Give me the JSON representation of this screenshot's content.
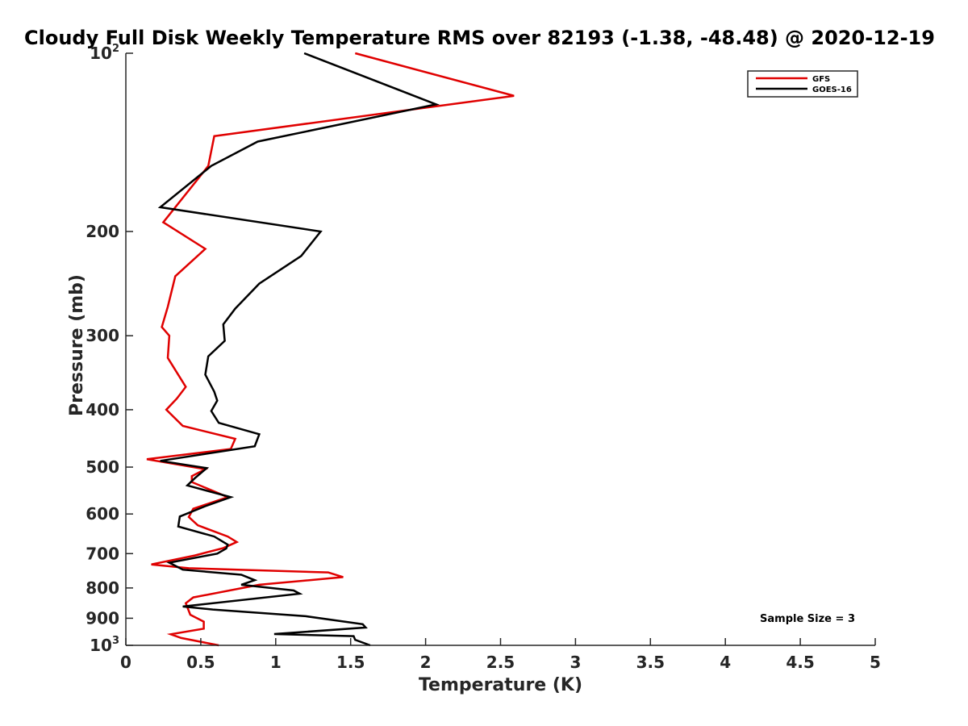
{
  "chart_data": {
    "type": "line",
    "title": "Cloudy Full Disk Weekly Temperature RMS over 82193 (-1.38, -48.48) @ 2020-12-19",
    "xlabel": "Temperature (K)",
    "ylabel": "Pressure (mb)",
    "xlim": [
      0,
      5
    ],
    "ylim": [
      100,
      1000
    ],
    "y_scale": "log",
    "y_reversed": true,
    "x_ticks": [
      "0",
      "0.5",
      "1",
      "1.5",
      "2",
      "2.5",
      "3",
      "3.5",
      "4",
      "4.5",
      "5"
    ],
    "y_ticks": [
      {
        "value": 100,
        "label": "10",
        "sup": "2"
      },
      {
        "value": 200,
        "label": "200",
        "sup": ""
      },
      {
        "value": 300,
        "label": "300",
        "sup": ""
      },
      {
        "value": 400,
        "label": "400",
        "sup": ""
      },
      {
        "value": 500,
        "label": "500",
        "sup": ""
      },
      {
        "value": 600,
        "label": "600",
        "sup": ""
      },
      {
        "value": 700,
        "label": "700",
        "sup": ""
      },
      {
        "value": 800,
        "label": "800",
        "sup": ""
      },
      {
        "value": 900,
        "label": "900",
        "sup": ""
      },
      {
        "value": 1000,
        "label": "10",
        "sup": "3"
      }
    ],
    "legend_position": "top-right",
    "grid": false,
    "annotation": "Sample Size = 3",
    "series": [
      {
        "name": "GFS",
        "color": "#e00000",
        "points": [
          [
            1.53,
            100
          ],
          [
            2.59,
            118
          ],
          [
            0.59,
            138
          ],
          [
            0.55,
            155
          ],
          [
            0.25,
            193
          ],
          [
            0.53,
            214
          ],
          [
            0.33,
            238
          ],
          [
            0.28,
            268
          ],
          [
            0.24,
            290
          ],
          [
            0.29,
            300
          ],
          [
            0.28,
            327
          ],
          [
            0.4,
            366
          ],
          [
            0.34,
            383
          ],
          [
            0.27,
            400
          ],
          [
            0.38,
            426
          ],
          [
            0.73,
            448
          ],
          [
            0.7,
            466
          ],
          [
            0.14,
            485
          ],
          [
            0.53,
            504
          ],
          [
            0.44,
            518
          ],
          [
            0.44,
            530
          ],
          [
            0.68,
            562
          ],
          [
            0.45,
            588
          ],
          [
            0.42,
            607
          ],
          [
            0.48,
            627
          ],
          [
            0.68,
            655
          ],
          [
            0.74,
            669
          ],
          [
            0.65,
            685
          ],
          [
            0.46,
            705
          ],
          [
            0.17,
            730
          ],
          [
            0.42,
            741
          ],
          [
            1.35,
            753
          ],
          [
            1.45,
            767
          ],
          [
            0.89,
            790
          ],
          [
            0.45,
            830
          ],
          [
            0.4,
            849
          ],
          [
            0.43,
            888
          ],
          [
            0.52,
            912
          ],
          [
            0.52,
            937
          ],
          [
            0.3,
            958
          ],
          [
            0.37,
            972
          ],
          [
            0.62,
            1000
          ]
        ]
      },
      {
        "name": "GOES-16",
        "color": "#000000",
        "points": [
          [
            1.19,
            100
          ],
          [
            2.07,
            122
          ],
          [
            0.88,
            141
          ],
          [
            0.57,
            155
          ],
          [
            0.23,
            182
          ],
          [
            1.3,
            200
          ],
          [
            1.17,
            220
          ],
          [
            0.89,
            245
          ],
          [
            0.73,
            270
          ],
          [
            0.65,
            287
          ],
          [
            0.66,
            306
          ],
          [
            0.55,
            325
          ],
          [
            0.53,
            349
          ],
          [
            0.59,
            373
          ],
          [
            0.61,
            386
          ],
          [
            0.57,
            402
          ],
          [
            0.62,
            421
          ],
          [
            0.89,
            440
          ],
          [
            0.86,
            461
          ],
          [
            0.23,
            488
          ],
          [
            0.54,
            502
          ],
          [
            0.46,
            522
          ],
          [
            0.41,
            537
          ],
          [
            0.7,
            562
          ],
          [
            0.53,
            582
          ],
          [
            0.36,
            606
          ],
          [
            0.35,
            630
          ],
          [
            0.59,
            655
          ],
          [
            0.68,
            676
          ],
          [
            0.67,
            686
          ],
          [
            0.61,
            700
          ],
          [
            0.29,
            725
          ],
          [
            0.38,
            745
          ],
          [
            0.77,
            760
          ],
          [
            0.86,
            776
          ],
          [
            0.77,
            790
          ],
          [
            1.12,
            808
          ],
          [
            1.16,
            818
          ],
          [
            0.38,
            860
          ],
          [
            0.58,
            870
          ],
          [
            1.2,
            893
          ],
          [
            1.58,
            921
          ],
          [
            1.6,
            933
          ],
          [
            0.99,
            957
          ],
          [
            1.52,
            965
          ],
          [
            1.53,
            979
          ],
          [
            1.63,
            1000
          ]
        ]
      }
    ]
  }
}
